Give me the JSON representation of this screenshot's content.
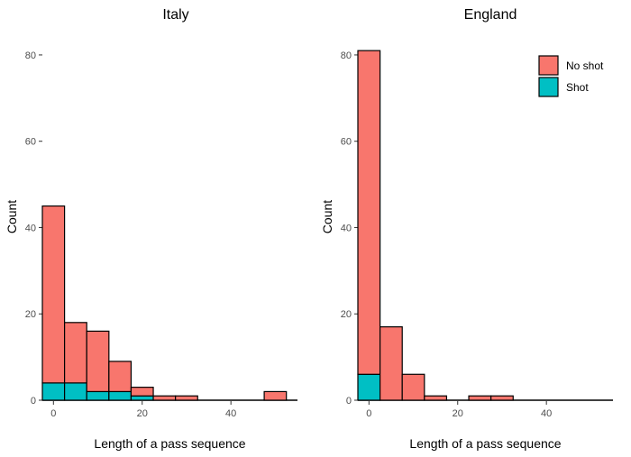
{
  "chart_data": [
    {
      "type": "bar",
      "subtype": "stacked-histogram",
      "title": "Italy",
      "xlabel": "Length of a pass sequence",
      "ylabel": "Count",
      "xlim": [
        -2.5,
        55
      ],
      "ylim": [
        0,
        85
      ],
      "x_ticks": [
        0,
        20,
        40
      ],
      "y_ticks": [
        0,
        20,
        40,
        60,
        80
      ],
      "bin_width": 5,
      "bins": [
        0,
        5,
        10,
        15,
        20,
        25,
        30,
        35,
        40,
        45,
        50
      ],
      "series": [
        {
          "name": "Shot",
          "color": "#00BFC4",
          "values": [
            4,
            4,
            2,
            2,
            1,
            0,
            0,
            0,
            0,
            0,
            0
          ]
        },
        {
          "name": "No shot",
          "color": "#F8766D",
          "values": [
            41,
            14,
            14,
            7,
            2,
            1,
            1,
            0,
            0,
            0,
            2
          ]
        }
      ],
      "legend": false,
      "grid": false
    },
    {
      "type": "bar",
      "subtype": "stacked-histogram",
      "title": "England",
      "xlabel": "Length of a pass sequence",
      "ylabel": "Count",
      "xlim": [
        -2.5,
        55
      ],
      "ylim": [
        0,
        85
      ],
      "x_ticks": [
        0,
        20,
        40
      ],
      "y_ticks": [
        0,
        20,
        40,
        60,
        80
      ],
      "bin_width": 5,
      "bins": [
        0,
        5,
        10,
        15,
        20,
        25,
        30,
        35,
        40,
        45,
        50
      ],
      "series": [
        {
          "name": "Shot",
          "color": "#00BFC4",
          "values": [
            6,
            0,
            0,
            0,
            0,
            0,
            0,
            0,
            0,
            0,
            0
          ]
        },
        {
          "name": "No shot",
          "color": "#F8766D",
          "values": [
            75,
            17,
            6,
            1,
            0,
            1,
            1,
            0,
            0,
            0,
            0
          ]
        }
      ],
      "legend": true,
      "legend_position": "top-right",
      "grid": false
    }
  ],
  "legend": {
    "items": [
      {
        "label": "No shot",
        "color": "#F8766D"
      },
      {
        "label": "Shot",
        "color": "#00BFC4"
      }
    ]
  }
}
